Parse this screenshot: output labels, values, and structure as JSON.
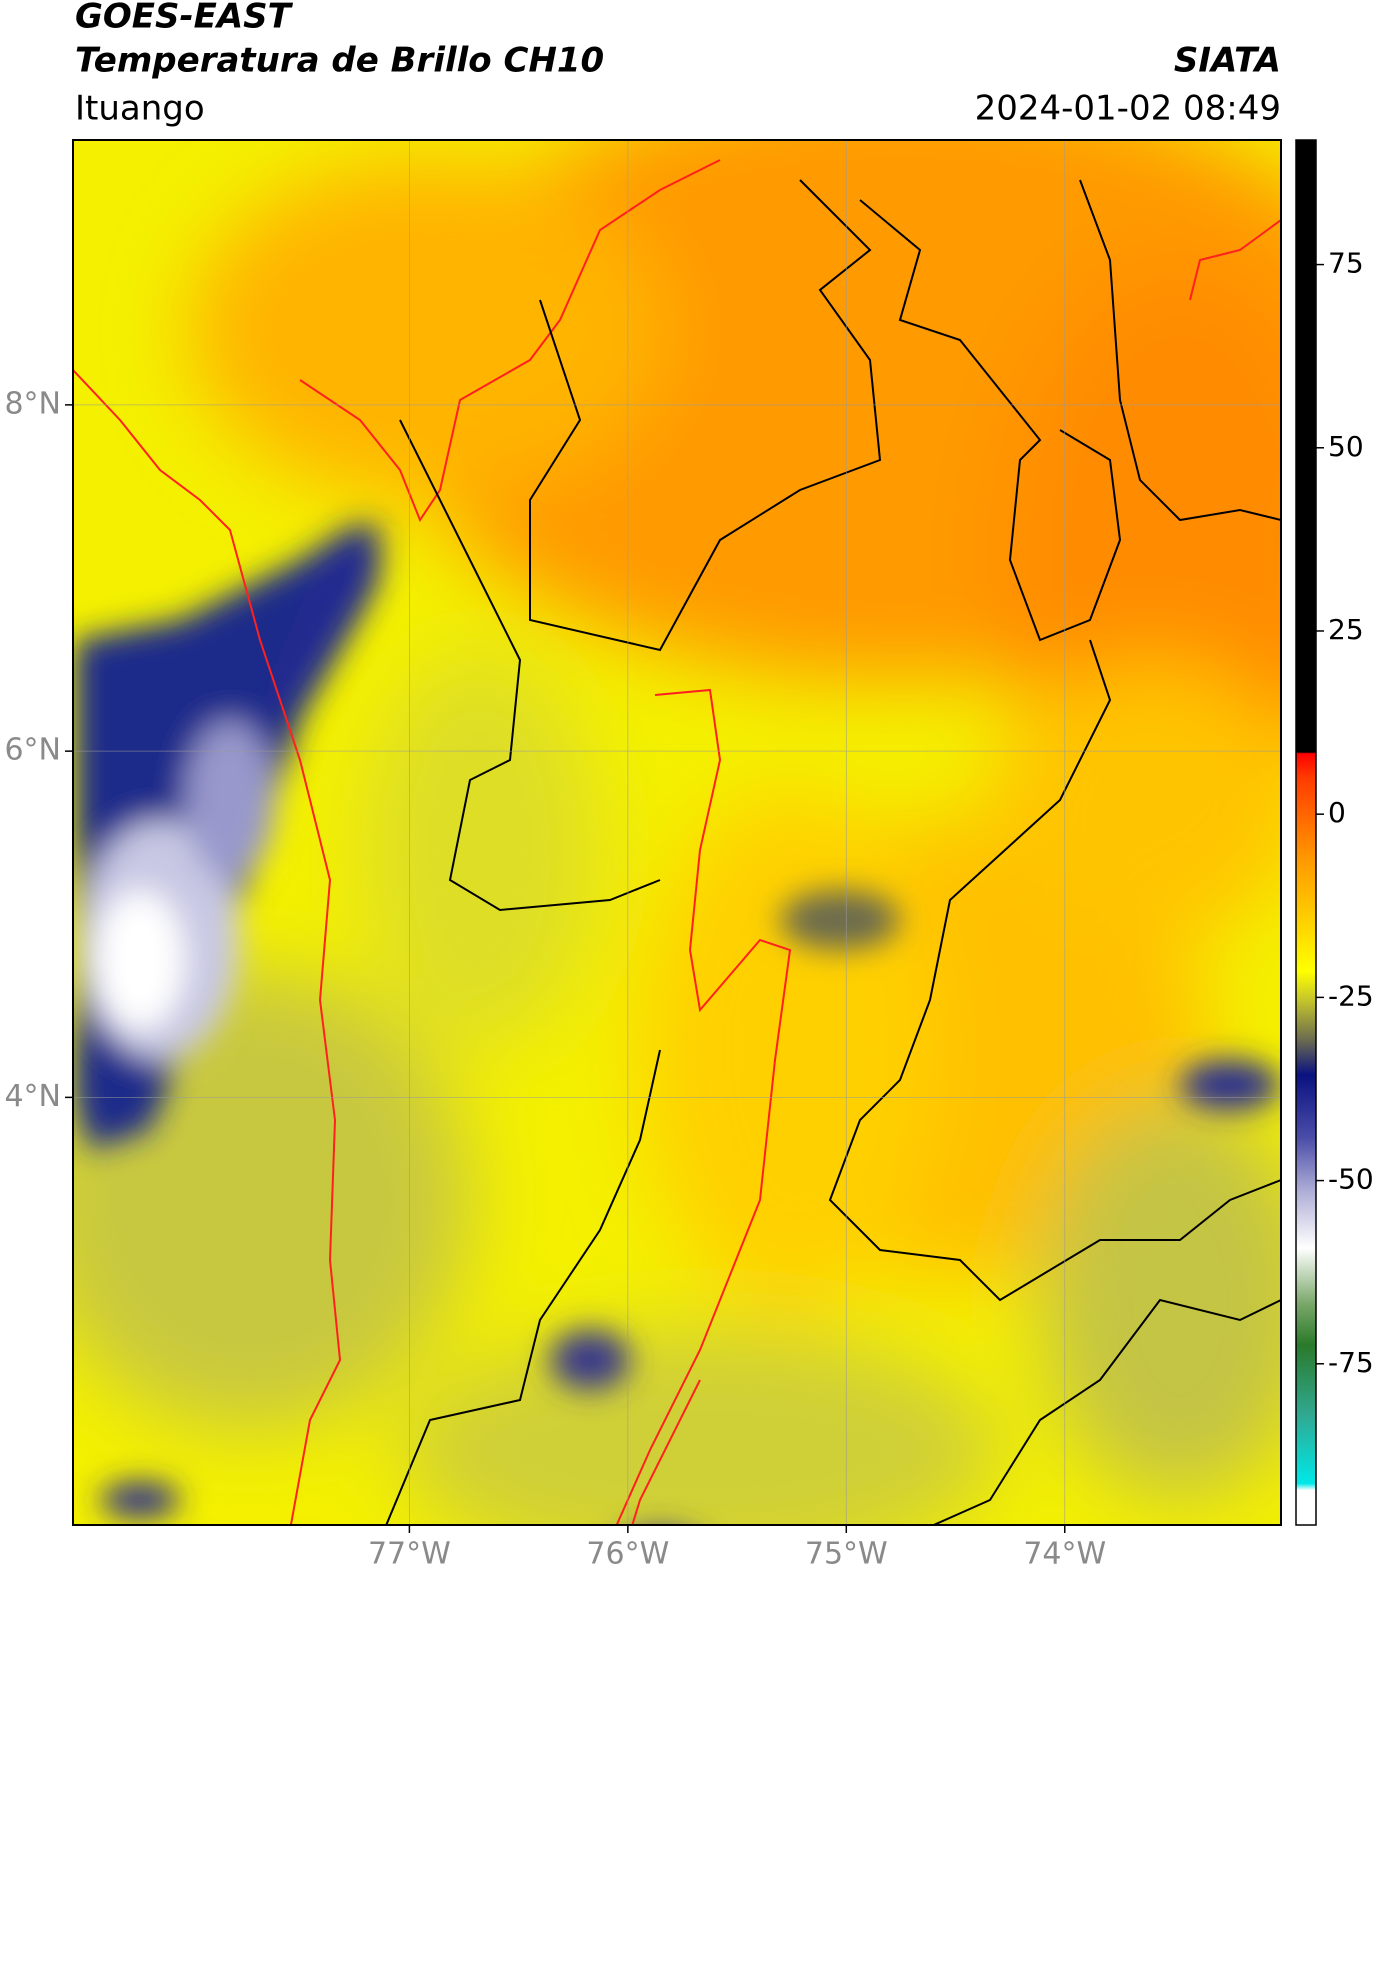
{
  "header": {
    "satellite": "GOES-EAST",
    "product": "Temperatura de Brillo CH10",
    "agency": "SIATA",
    "location": "Ituango",
    "datetime": "2024-01-02 08:49"
  },
  "map": {
    "xlim": [
      -78.54,
      -73.01
    ],
    "ylim": [
      1.53,
      9.53
    ],
    "xticks": [
      {
        "value": -77,
        "label": "77°W"
      },
      {
        "value": -76,
        "label": "76°W"
      },
      {
        "value": -75,
        "label": "75°W"
      },
      {
        "value": -74,
        "label": "74°W"
      }
    ],
    "yticks": [
      {
        "value": 8,
        "label": "8°N"
      },
      {
        "value": 6,
        "label": "6°N"
      },
      {
        "value": 4,
        "label": "4°N"
      }
    ],
    "grid": true
  },
  "colorbar": {
    "lim": [
      -97,
      92
    ],
    "ticks": [
      75,
      50,
      25,
      0,
      -25,
      -50,
      -75
    ]
  }
}
